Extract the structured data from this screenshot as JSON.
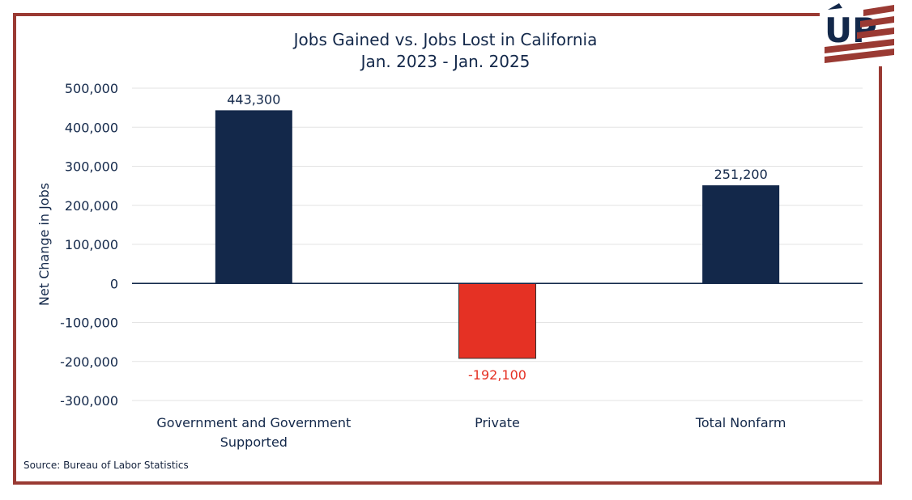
{
  "chart_data": {
    "type": "bar",
    "title": "Jobs Gained vs. Jobs Lost in California",
    "subtitle": "Jan. 2023 - Jan. 2025",
    "xlabel": "",
    "ylabel": "Net Change in Jobs",
    "categories": [
      "Government and Government Supported",
      "Private",
      "Total Nonfarm"
    ],
    "category_lines": [
      [
        "Government and Government",
        "Supported"
      ],
      [
        "Private"
      ],
      [
        "Total Nonfarm"
      ]
    ],
    "values": [
      443300,
      -192100,
      251200
    ],
    "value_labels": [
      "443,300",
      "-192,100",
      "251,200"
    ],
    "ylim": [
      -300000,
      500000
    ],
    "yticks": [
      500000,
      400000,
      300000,
      200000,
      100000,
      0,
      -100000,
      -200000,
      -300000
    ],
    "ytick_labels": [
      "500,000",
      "400,000",
      "300,000",
      "200,000",
      "100,000",
      "0",
      "-100,000",
      "-200,000",
      "-300,000"
    ],
    "grid": true,
    "legend": "none",
    "colors": {
      "positive": "#13284a",
      "negative": "#e53124",
      "label_positive": "#13284a",
      "label_negative": "#e53124"
    }
  },
  "source": "Source: Bureau of Labor Statistics",
  "logo": {
    "text": "UP",
    "colors": {
      "navy": "#13284a",
      "red": "#9a3a33"
    }
  },
  "frame_color": "#9a3a33"
}
